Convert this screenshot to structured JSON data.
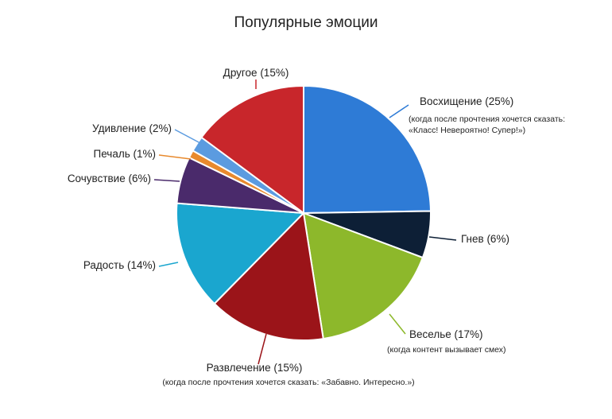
{
  "chart_data": {
    "type": "pie",
    "title": "Популярные эмоции",
    "slices": [
      {
        "label": "Восхищение (25%)",
        "sublabel": "(когда после прочтения хочется сказать: «Класс! Невероятно! Супер!»)",
        "value": 25,
        "color": "#2E7BD6"
      },
      {
        "label": "Гнев (6%)",
        "sublabel": "",
        "value": 6,
        "color": "#0D1F36"
      },
      {
        "label": "Веселье (17%)",
        "sublabel": "(когда контент вызывает смех)",
        "value": 17,
        "color": "#8DB82B"
      },
      {
        "label": "Развлечение (15%)",
        "sublabel": "(когда после прочтения хочется сказать: «Забавно. Интересно.»)",
        "value": 15,
        "color": "#9B1419"
      },
      {
        "label": "Радость (14%)",
        "sublabel": "",
        "value": 14,
        "color": "#1AA6CF"
      },
      {
        "label": "Сочувствие (6%)",
        "sublabel": "",
        "value": 6,
        "color": "#4A2A6B"
      },
      {
        "label": "Печаль (1%)",
        "sublabel": "",
        "value": 1,
        "color": "#E88A2E"
      },
      {
        "label": "Удивление (2%)",
        "sublabel": "",
        "value": 2,
        "color": "#5B9BE0"
      },
      {
        "label": "Другое (15%)",
        "sublabel": "",
        "value": 15,
        "color": "#C8262B"
      }
    ]
  }
}
